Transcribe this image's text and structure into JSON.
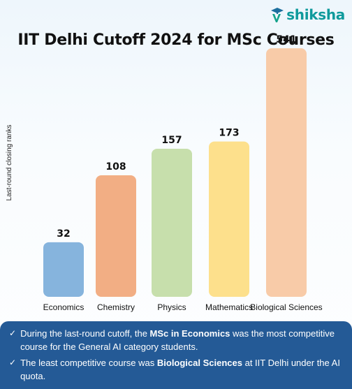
{
  "logo": {
    "text": "shiksha"
  },
  "chart_data": {
    "type": "bar",
    "title": "IIT Delhi Cutoff 2024 for MSc Courses",
    "ylabel": "Last-round closing ranks",
    "xlabel": "",
    "categories": [
      "Economics",
      "Chemistry",
      "Physics",
      "Mathematics",
      "Biological Sciences"
    ],
    "values": [
      32,
      108,
      157,
      173,
      541
    ],
    "colors": [
      "#86b4dd",
      "#f2ae84",
      "#c7dfac",
      "#fde08c",
      "#f8cba8"
    ],
    "grid": false,
    "legend": "none"
  },
  "notes": [
    {
      "before": "During the last-round cutoff, the ",
      "bold": "MSc in Economics",
      "after": " was the most competitive course for the General AI category students."
    },
    {
      "before": "The least competitive course was ",
      "bold": "Biological Sciences",
      "after": " at IIT Delhi under the AI quota."
    }
  ],
  "icons": {
    "check": "check-icon",
    "logo": "graduation-cap-icon"
  }
}
